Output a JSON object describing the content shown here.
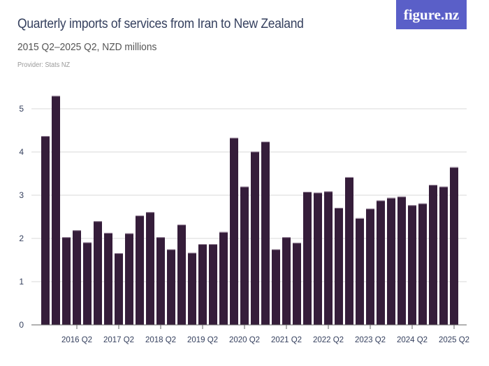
{
  "header": {
    "title": "Quarterly imports of services from Iran to New Zealand",
    "subtitle": "2015 Q2–2025 Q2, NZD millions",
    "provider": "Provider: Stats NZ",
    "logo_text": "figure.nz",
    "logo_color": "#5a5fc8"
  },
  "chart_data": {
    "type": "bar",
    "title": "Quarterly imports of services from Iran to New Zealand",
    "subtitle": "2015 Q2–2025 Q2, NZD millions",
    "xlabel": "",
    "ylabel": "",
    "ylim": [
      0,
      5.5
    ],
    "yticks": [
      0,
      1,
      2,
      3,
      4,
      5
    ],
    "grid": true,
    "bar_color": "#351d3a",
    "categories": [
      "2015 Q2",
      "2015 Q3",
      "2015 Q4",
      "2016 Q1",
      "2016 Q2",
      "2016 Q3",
      "2016 Q4",
      "2017 Q1",
      "2017 Q2",
      "2017 Q3",
      "2017 Q4",
      "2018 Q1",
      "2018 Q2",
      "2018 Q3",
      "2018 Q4",
      "2019 Q1",
      "2019 Q2",
      "2019 Q3",
      "2019 Q4",
      "2020 Q1",
      "2020 Q2",
      "2020 Q3",
      "2020 Q4",
      "2021 Q1",
      "2021 Q2",
      "2021 Q3",
      "2021 Q4",
      "2022 Q1",
      "2022 Q2",
      "2022 Q3",
      "2022 Q4",
      "2023 Q1",
      "2023 Q2",
      "2023 Q3",
      "2023 Q4",
      "2024 Q1",
      "2024 Q2",
      "2024 Q3",
      "2024 Q4",
      "2025 Q1",
      "2025 Q2"
    ],
    "values": [
      null,
      4.37,
      5.3,
      2.03,
      2.19,
      1.91,
      2.4,
      2.13,
      1.66,
      2.12,
      2.53,
      2.61,
      2.03,
      1.75,
      2.32,
      1.67,
      1.87,
      1.87,
      2.15,
      4.33,
      3.2,
      4.01,
      4.24,
      1.75,
      2.03,
      1.9,
      3.08,
      3.06,
      3.09,
      2.71,
      3.42,
      2.47,
      2.69,
      2.88,
      2.94,
      2.97,
      2.77,
      2.81,
      3.24,
      3.2,
      3.65
    ],
    "xtick_labels": [
      "2016 Q2",
      "2017 Q2",
      "2018 Q2",
      "2019 Q2",
      "2020 Q2",
      "2021 Q2",
      "2022 Q2",
      "2023 Q2",
      "2024 Q2",
      "2025 Q2"
    ]
  }
}
